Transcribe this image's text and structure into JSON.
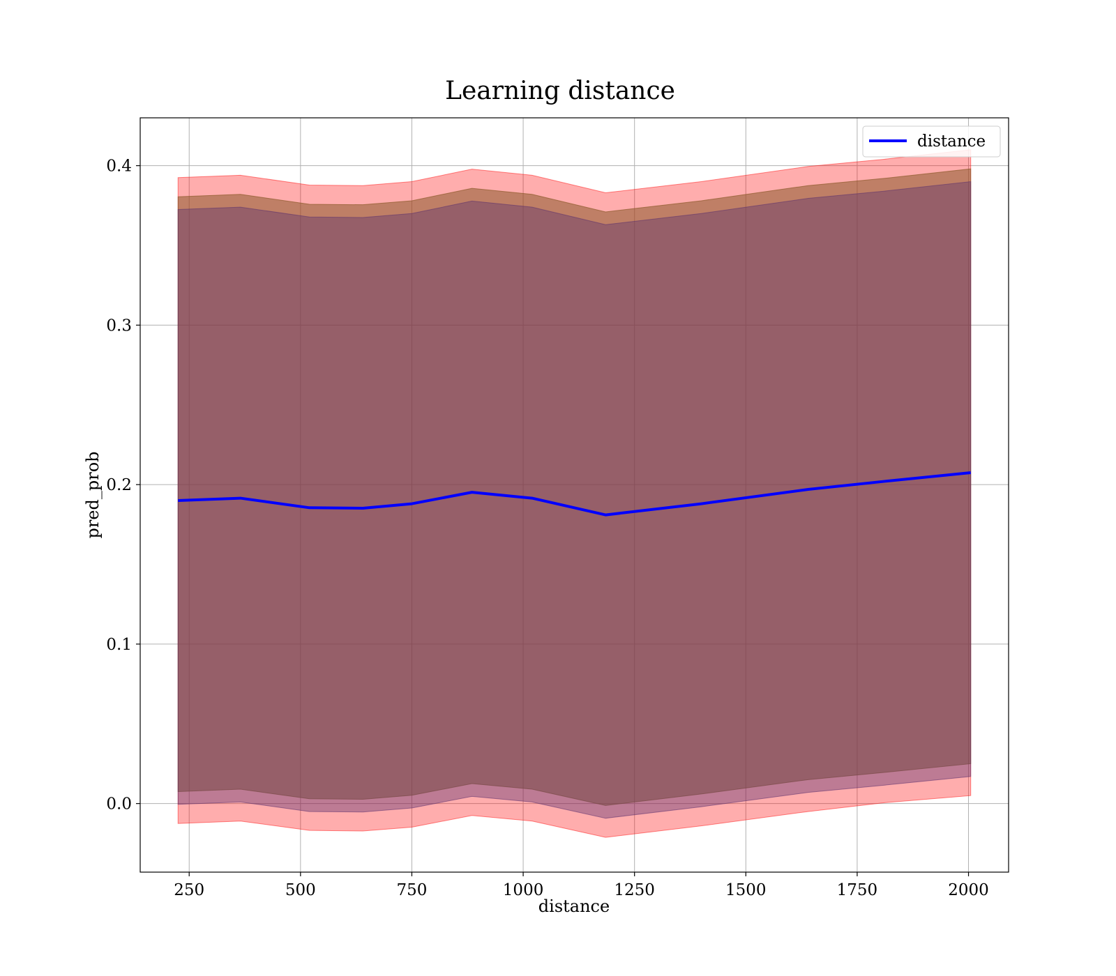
{
  "chart_data": {
    "type": "line",
    "title": "Learning distance",
    "xlabel": "distance",
    "ylabel": "pred_prob",
    "xlim": [
      140,
      2090
    ],
    "ylim": [
      -0.043,
      0.43
    ],
    "xticks": [
      250,
      500,
      750,
      1000,
      1250,
      1500,
      1750,
      2000
    ],
    "xtick_labels": [
      "250",
      "500",
      "750",
      "1000",
      "1250",
      "1500",
      "1750",
      "2000"
    ],
    "yticks": [
      0.0,
      0.1,
      0.2,
      0.3,
      0.4
    ],
    "ytick_labels": [
      "0.0",
      "0.1",
      "0.2",
      "0.3",
      "0.4"
    ],
    "grid": true,
    "legend": {
      "location": "upper right",
      "entries": [
        "distance"
      ]
    },
    "x": [
      225,
      365,
      520,
      640,
      750,
      885,
      1020,
      1185,
      1400,
      1640,
      1810,
      2005
    ],
    "series": [
      {
        "name": "distance",
        "color": "#0000ff",
        "values": [
          0.19,
          0.1915,
          0.1855,
          0.1852,
          0.188,
          0.1952,
          0.1915,
          0.181,
          0.188,
          0.197,
          0.202,
          0.2075
        ]
      }
    ],
    "bands": [
      {
        "color": "#ff0000",
        "opacity": 0.32,
        "upper": [
          0.3925,
          0.394,
          0.3878,
          0.3875,
          0.39,
          0.3978,
          0.394,
          0.383,
          0.39,
          0.3995,
          0.404,
          0.41
        ],
        "lower": [
          -0.0125,
          -0.011,
          -0.0168,
          -0.0172,
          -0.0148,
          -0.0075,
          -0.011,
          -0.0212,
          -0.014,
          -0.005,
          0.0005,
          0.005
        ]
      },
      {
        "color": "#8b5a2b",
        "opacity": 0.55,
        "upper": [
          0.3805,
          0.382,
          0.3758,
          0.3755,
          0.378,
          0.3858,
          0.382,
          0.371,
          0.378,
          0.3875,
          0.392,
          0.398
        ],
        "lower": [
          0.0075,
          0.009,
          0.003,
          0.0027,
          0.0052,
          0.0125,
          0.009,
          -0.0012,
          0.006,
          0.015,
          0.0195,
          0.025
        ]
      },
      {
        "color": "#5a2f6e",
        "opacity": 0.4,
        "upper": [
          0.3725,
          0.374,
          0.3678,
          0.3675,
          0.37,
          0.3778,
          0.374,
          0.363,
          0.37,
          0.3795,
          0.384,
          0.39
        ],
        "lower": [
          -0.0005,
          0.001,
          -0.005,
          -0.0053,
          -0.0028,
          0.0045,
          0.001,
          -0.0092,
          -0.002,
          0.007,
          0.0115,
          0.017
        ]
      }
    ]
  }
}
